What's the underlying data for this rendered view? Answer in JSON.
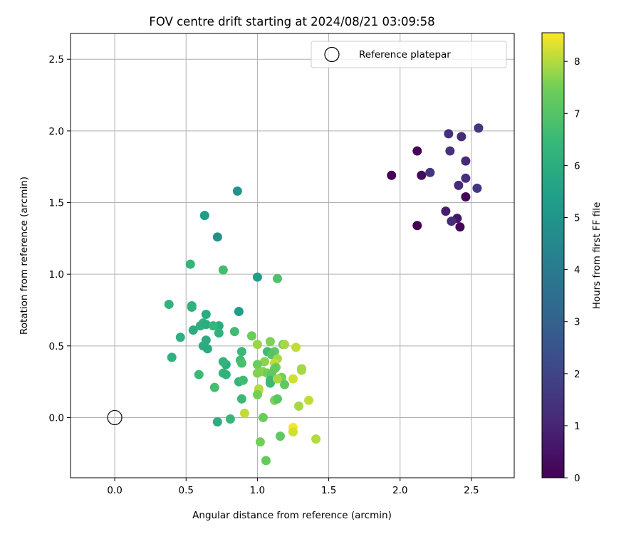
{
  "chart_data": {
    "type": "scatter",
    "title": "FOV centre drift starting at 2024/08/21 03:09:58",
    "xlabel": "Angular distance from reference (arcmin)",
    "ylabel": "Rotation from reference (arcmin)",
    "xlim": [
      -0.31,
      2.8
    ],
    "ylim": [
      -0.42,
      2.68
    ],
    "xticks": [
      0.0,
      0.5,
      1.0,
      1.5,
      2.0,
      2.5
    ],
    "yticks": [
      0.0,
      0.5,
      1.0,
      1.5,
      2.0,
      2.5
    ],
    "xtick_labels": [
      "0.0",
      "0.5",
      "1.0",
      "1.5",
      "2.0",
      "2.5"
    ],
    "ytick_labels": [
      "0.0",
      "0.5",
      "1.0",
      "1.5",
      "2.0",
      "2.5"
    ],
    "grid": true,
    "legend": {
      "position": "top-right",
      "entries": [
        "Reference platepar"
      ]
    },
    "reference_point": {
      "label": "Reference platepar",
      "x": 0.0,
      "y": 0.0
    },
    "colorbar": {
      "label": "Hours from first FF file",
      "colormap": "viridis",
      "range": [
        0,
        8.55
      ],
      "ticks": [
        0,
        1,
        2,
        3,
        4,
        5,
        6,
        7,
        8
      ],
      "tick_labels": [
        "0",
        "1",
        "2",
        "3",
        "4",
        "5",
        "6",
        "7",
        "8"
      ]
    },
    "points": [
      {
        "x": 2.12,
        "y": 1.86,
        "h": 0.1
      },
      {
        "x": 1.94,
        "y": 1.69,
        "h": 0.15
      },
      {
        "x": 2.15,
        "y": 1.69,
        "h": 0.3
      },
      {
        "x": 2.12,
        "y": 1.34,
        "h": 0.05
      },
      {
        "x": 2.46,
        "y": 1.54,
        "h": 0.1
      },
      {
        "x": 2.42,
        "y": 1.33,
        "h": 0.15
      },
      {
        "x": 2.4,
        "y": 1.39,
        "h": 0.6
      },
      {
        "x": 2.32,
        "y": 1.44,
        "h": 0.8
      },
      {
        "x": 2.36,
        "y": 1.37,
        "h": 1.2
      },
      {
        "x": 2.21,
        "y": 1.71,
        "h": 1.5
      },
      {
        "x": 2.34,
        "y": 1.98,
        "h": 1.3
      },
      {
        "x": 2.43,
        "y": 1.96,
        "h": 1.2
      },
      {
        "x": 2.35,
        "y": 1.86,
        "h": 1.4
      },
      {
        "x": 2.46,
        "y": 1.79,
        "h": 1.1
      },
      {
        "x": 2.46,
        "y": 1.67,
        "h": 1.3
      },
      {
        "x": 2.41,
        "y": 1.62,
        "h": 1.2
      },
      {
        "x": 2.55,
        "y": 2.02,
        "h": 1.5
      },
      {
        "x": 2.54,
        "y": 1.6,
        "h": 1.6
      },
      {
        "x": 0.86,
        "y": 1.58,
        "h": 5.0
      },
      {
        "x": 0.63,
        "y": 1.41,
        "h": 5.3
      },
      {
        "x": 0.72,
        "y": 1.26,
        "h": 4.8
      },
      {
        "x": 1.0,
        "y": 0.98,
        "h": 5.4
      },
      {
        "x": 0.87,
        "y": 0.74,
        "h": 5.3
      },
      {
        "x": 1.14,
        "y": 0.97,
        "h": 6.9
      },
      {
        "x": 0.53,
        "y": 1.07,
        "h": 6.3
      },
      {
        "x": 0.76,
        "y": 1.03,
        "h": 6.7
      },
      {
        "x": 0.38,
        "y": 0.79,
        "h": 6.2
      },
      {
        "x": 0.54,
        "y": 0.77,
        "h": 6.0
      },
      {
        "x": 0.54,
        "y": 0.78,
        "h": 6.2
      },
      {
        "x": 0.64,
        "y": 0.72,
        "h": 5.9
      },
      {
        "x": 0.55,
        "y": 0.61,
        "h": 6.0
      },
      {
        "x": 0.62,
        "y": 0.66,
        "h": 6.3
      },
      {
        "x": 0.6,
        "y": 0.64,
        "h": 6.1
      },
      {
        "x": 0.64,
        "y": 0.65,
        "h": 6.0
      },
      {
        "x": 0.73,
        "y": 0.64,
        "h": 5.9
      },
      {
        "x": 0.69,
        "y": 0.64,
        "h": 6.4
      },
      {
        "x": 0.84,
        "y": 0.6,
        "h": 6.6
      },
      {
        "x": 0.46,
        "y": 0.56,
        "h": 6.1
      },
      {
        "x": 0.64,
        "y": 0.54,
        "h": 6.0
      },
      {
        "x": 0.73,
        "y": 0.59,
        "h": 6.2
      },
      {
        "x": 0.62,
        "y": 0.5,
        "h": 6.0
      },
      {
        "x": 0.65,
        "y": 0.48,
        "h": 5.9
      },
      {
        "x": 0.4,
        "y": 0.42,
        "h": 6.1
      },
      {
        "x": 0.78,
        "y": 0.37,
        "h": 6.0
      },
      {
        "x": 0.76,
        "y": 0.39,
        "h": 6.3
      },
      {
        "x": 0.89,
        "y": 0.46,
        "h": 6.5
      },
      {
        "x": 0.88,
        "y": 0.4,
        "h": 6.6
      },
      {
        "x": 0.89,
        "y": 0.38,
        "h": 6.8
      },
      {
        "x": 0.59,
        "y": 0.3,
        "h": 6.5
      },
      {
        "x": 0.76,
        "y": 0.31,
        "h": 6.4
      },
      {
        "x": 0.78,
        "y": 0.3,
        "h": 6.2
      },
      {
        "x": 0.87,
        "y": 0.25,
        "h": 6.3
      },
      {
        "x": 0.9,
        "y": 0.26,
        "h": 6.6
      },
      {
        "x": 0.7,
        "y": 0.21,
        "h": 6.7
      },
      {
        "x": 0.89,
        "y": 0.13,
        "h": 6.5
      },
      {
        "x": 0.81,
        "y": -0.01,
        "h": 6.4
      },
      {
        "x": 0.72,
        "y": -0.03,
        "h": 6.0
      },
      {
        "x": 0.96,
        "y": 0.57,
        "h": 7.4
      },
      {
        "x": 1.09,
        "y": 0.53,
        "h": 7.6
      },
      {
        "x": 1.0,
        "y": 0.51,
        "h": 7.8
      },
      {
        "x": 1.07,
        "y": 0.46,
        "h": 6.6
      },
      {
        "x": 1.12,
        "y": 0.46,
        "h": 7.2
      },
      {
        "x": 1.1,
        "y": 0.44,
        "h": 7.0
      },
      {
        "x": 1.18,
        "y": 0.51,
        "h": 7.3
      },
      {
        "x": 1.19,
        "y": 0.51,
        "h": 7.9
      },
      {
        "x": 1.27,
        "y": 0.49,
        "h": 8.1
      },
      {
        "x": 1.05,
        "y": 0.39,
        "h": 7.7
      },
      {
        "x": 1.14,
        "y": 0.41,
        "h": 7.9
      },
      {
        "x": 1.12,
        "y": 0.38,
        "h": 8.1
      },
      {
        "x": 1.13,
        "y": 0.35,
        "h": 7.5
      },
      {
        "x": 1.0,
        "y": 0.37,
        "h": 7.4
      },
      {
        "x": 1.04,
        "y": 0.32,
        "h": 7.7
      },
      {
        "x": 1.07,
        "y": 0.31,
        "h": 7.5
      },
      {
        "x": 1.1,
        "y": 0.3,
        "h": 7.2
      },
      {
        "x": 1.0,
        "y": 0.31,
        "h": 7.6
      },
      {
        "x": 1.12,
        "y": 0.34,
        "h": 7.3
      },
      {
        "x": 1.09,
        "y": 0.26,
        "h": 6.6
      },
      {
        "x": 1.09,
        "y": 0.24,
        "h": 6.5
      },
      {
        "x": 1.17,
        "y": 0.28,
        "h": 7.5
      },
      {
        "x": 1.14,
        "y": 0.27,
        "h": 7.9
      },
      {
        "x": 1.19,
        "y": 0.23,
        "h": 7.2
      },
      {
        "x": 1.31,
        "y": 0.34,
        "h": 7.8
      },
      {
        "x": 1.31,
        "y": 0.33,
        "h": 7.9
      },
      {
        "x": 1.25,
        "y": 0.27,
        "h": 8.2
      },
      {
        "x": 1.01,
        "y": 0.19,
        "h": 8.4
      },
      {
        "x": 1.01,
        "y": 0.2,
        "h": 8.0
      },
      {
        "x": 1.0,
        "y": 0.16,
        "h": 7.5
      },
      {
        "x": 1.12,
        "y": 0.12,
        "h": 7.6
      },
      {
        "x": 1.14,
        "y": 0.13,
        "h": 7.1
      },
      {
        "x": 1.29,
        "y": 0.08,
        "h": 7.9
      },
      {
        "x": 1.36,
        "y": 0.12,
        "h": 8.1
      },
      {
        "x": 0.91,
        "y": 0.03,
        "h": 8.1
      },
      {
        "x": 1.04,
        "y": 0.0,
        "h": 7.4
      },
      {
        "x": 1.25,
        "y": -0.07,
        "h": 8.5
      },
      {
        "x": 1.25,
        "y": -0.1,
        "h": 8.2
      },
      {
        "x": 1.16,
        "y": -0.13,
        "h": 7.2
      },
      {
        "x": 1.41,
        "y": -0.15,
        "h": 8.0
      },
      {
        "x": 1.02,
        "y": -0.17,
        "h": 7.5
      },
      {
        "x": 1.06,
        "y": -0.3,
        "h": 7.3
      }
    ]
  }
}
